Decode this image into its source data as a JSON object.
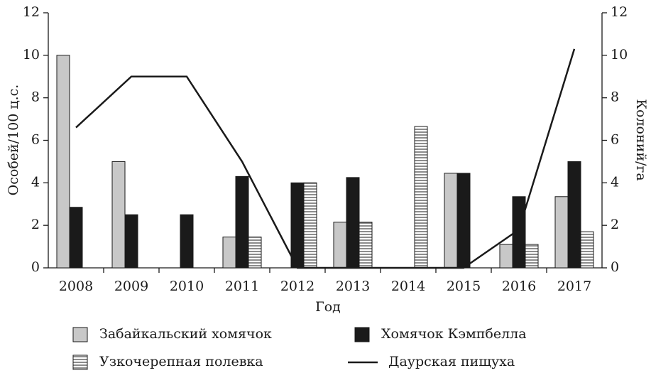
{
  "chart_data": {
    "type": "bar",
    "x_label": "Год",
    "y_label": "Особей/100 ц.с.",
    "y2_label": "Колоний/га",
    "categories": [
      "2008",
      "2009",
      "2010",
      "2011",
      "2012",
      "2013",
      "2014",
      "2015",
      "2016",
      "2017"
    ],
    "ylim": [
      0,
      12
    ],
    "yticks": [
      0,
      2,
      4,
      6,
      8,
      10,
      12
    ],
    "y2lim": [
      0,
      12
    ],
    "y2ticks": [
      0,
      2,
      4,
      6,
      8,
      10,
      12
    ],
    "series": [
      {
        "name": "Забайкальский хомячок",
        "kind": "bar",
        "color": "#c8c8c8",
        "values": [
          10,
          5,
          null,
          1.45,
          null,
          2.15,
          null,
          4.45,
          1.1,
          3.35
        ]
      },
      {
        "name": "Хомячок Кэмпбелла",
        "kind": "bar",
        "color": "#1a1a1a",
        "values": [
          2.85,
          2.5,
          2.5,
          4.3,
          4.0,
          4.25,
          null,
          4.45,
          3.35,
          5.0
        ]
      },
      {
        "name": "Узкочерепная полевка",
        "kind": "bar",
        "color": "#ffffff",
        "hatch": "horizontal",
        "values": [
          null,
          null,
          null,
          1.45,
          4.0,
          2.15,
          6.65,
          null,
          1.1,
          1.7
        ]
      },
      {
        "name": "Даурская пищуха",
        "kind": "line",
        "axis": "y2",
        "color": "#1a1a1a",
        "values": [
          6.6,
          9.0,
          9.0,
          5.0,
          0,
          0,
          0,
          0,
          1.8,
          10.3
        ]
      }
    ]
  }
}
